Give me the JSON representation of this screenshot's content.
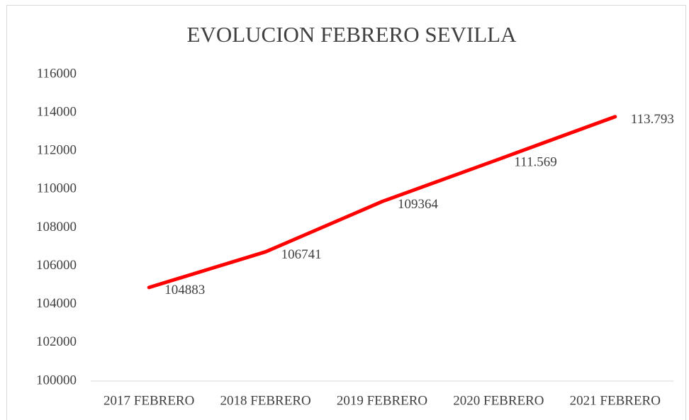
{
  "chart_data": {
    "type": "line",
    "title": "EVOLUCION FEBRERO SEVILLA",
    "categories": [
      "2017 FEBRERO",
      "2018 FEBRERO",
      "2019 FEBRERO",
      "2020 FEBRERO",
      "2021 FEBRERO"
    ],
    "values": [
      104883,
      106741,
      109364,
      111569,
      113793
    ],
    "value_labels": [
      "104883",
      "106741",
      "109364",
      "111.569",
      "113.793"
    ],
    "color": "#ff0000",
    "ylim": [
      100000,
      116000
    ],
    "yticks": [
      100000,
      102000,
      104000,
      106000,
      108000,
      110000,
      112000,
      114000,
      116000
    ],
    "grid": false
  }
}
